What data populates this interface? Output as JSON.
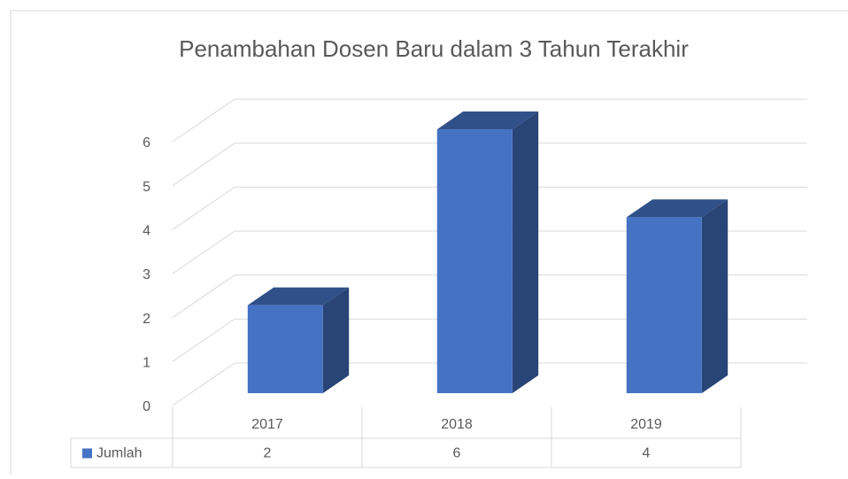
{
  "chart_data": {
    "type": "bar3d",
    "title": "Penambahan Dosen Baru dalam 3 Tahun Terakhir",
    "categories": [
      "2017",
      "2018",
      "2019"
    ],
    "series": [
      {
        "name": "Jumlah",
        "color": "#4472c4",
        "values": [
          2,
          6,
          4
        ]
      }
    ],
    "ylim": [
      0,
      6
    ],
    "yticks": [
      0,
      1,
      2,
      3,
      4,
      5,
      6
    ],
    "grid": true,
    "data_table": true
  }
}
